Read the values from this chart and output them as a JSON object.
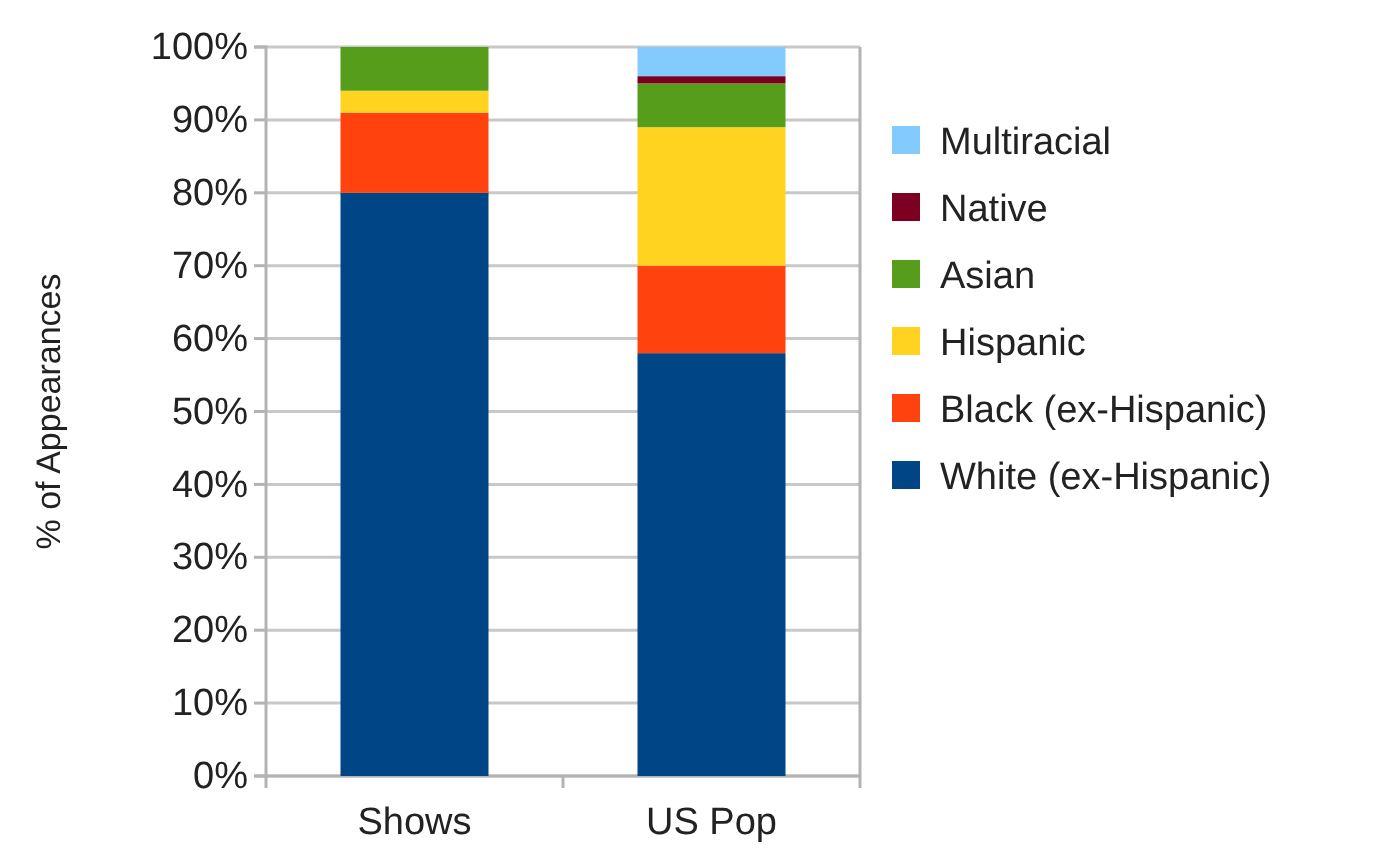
{
  "chart_data": {
    "type": "bar",
    "stacked": true,
    "ylabel": "% of Appearances",
    "categories": [
      "Shows",
      "US Pop"
    ],
    "series": [
      {
        "name": "White (ex-Hispanic)",
        "color": "#004586",
        "values": [
          80,
          58
        ]
      },
      {
        "name": "Black (ex-Hispanic)",
        "color": "#ff420e",
        "values": [
          11,
          12
        ]
      },
      {
        "name": "Hispanic",
        "color": "#ffd320",
        "values": [
          3,
          19
        ]
      },
      {
        "name": "Asian",
        "color": "#579d1c",
        "values": [
          6,
          6
        ]
      },
      {
        "name": "Native",
        "color": "#7e0021",
        "values": [
          0,
          1
        ]
      },
      {
        "name": "Multiracial",
        "color": "#83caff",
        "values": [
          0,
          4
        ]
      }
    ],
    "ylim": [
      0,
      100
    ],
    "yticks": [
      {
        "value": 0,
        "label": "0%"
      },
      {
        "value": 10,
        "label": "10%"
      },
      {
        "value": 20,
        "label": "20%"
      },
      {
        "value": 30,
        "label": "30%"
      },
      {
        "value": 40,
        "label": "40%"
      },
      {
        "value": 50,
        "label": "50%"
      },
      {
        "value": 60,
        "label": "60%"
      },
      {
        "value": 70,
        "label": "70%"
      },
      {
        "value": 80,
        "label": "80%"
      },
      {
        "value": 90,
        "label": "90%"
      },
      {
        "value": 100,
        "label": "100%"
      }
    ],
    "grid": "y",
    "legend": "right"
  }
}
